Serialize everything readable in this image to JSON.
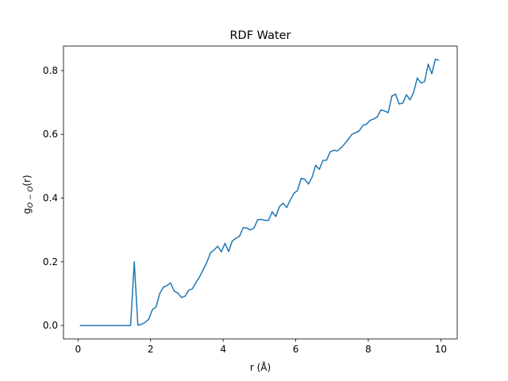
{
  "chart_data": {
    "type": "line",
    "title": "RDF Water",
    "xlabel": "r (Å)",
    "ylabel": {
      "main": "g",
      "subscript": "O − O",
      "suffix": "(r)"
    },
    "xlim": [
      -0.4,
      10.45
    ],
    "ylim": [
      -0.042,
      0.877
    ],
    "xticks": [
      0,
      2,
      4,
      6,
      8,
      10
    ],
    "xtick_labels": [
      "0",
      "2",
      "4",
      "6",
      "8",
      "10"
    ],
    "yticks": [
      0.0,
      0.2,
      0.4,
      0.6,
      0.8
    ],
    "ytick_labels": [
      "0.0",
      "0.2",
      "0.4",
      "0.6",
      "0.8"
    ],
    "grid": false,
    "color": "#1f77b4",
    "series": [
      {
        "x": [
          0.05,
          0.15,
          0.25,
          0.35,
          0.45,
          0.55,
          0.65,
          0.75,
          0.85,
          0.95,
          1.05,
          1.15,
          1.25,
          1.35,
          1.45,
          1.55,
          1.65,
          1.75,
          1.85,
          1.95,
          2.05,
          2.15,
          2.25,
          2.35,
          2.45,
          2.55,
          2.65,
          2.75,
          2.85,
          2.95,
          3.05,
          3.15,
          3.25,
          3.35,
          3.45,
          3.55,
          3.65,
          3.75,
          3.85,
          3.95,
          4.05,
          4.15,
          4.25,
          4.35,
          4.45,
          4.55,
          4.65,
          4.75,
          4.85,
          4.95,
          5.05,
          5.15,
          5.25,
          5.35,
          5.45,
          5.55,
          5.65,
          5.75,
          5.85,
          5.95,
          6.05,
          6.15,
          6.25,
          6.35,
          6.45,
          6.55,
          6.65,
          6.75,
          6.85,
          6.95,
          7.05,
          7.15,
          7.25,
          7.35,
          7.45,
          7.55,
          7.65,
          7.75,
          7.85,
          7.95,
          8.05,
          8.15,
          8.25,
          8.35,
          8.45,
          8.55,
          8.65,
          8.75,
          8.85,
          8.95,
          9.05,
          9.15,
          9.25,
          9.35,
          9.45,
          9.55,
          9.65,
          9.75,
          9.85,
          9.95
        ],
        "values": [
          0,
          0,
          0,
          0,
          0,
          0,
          0,
          0,
          0,
          0,
          0,
          0,
          0,
          0,
          0,
          0.2,
          0.001,
          0.004,
          0.01,
          0.02,
          0.05,
          0.058,
          0.1,
          0.12,
          0.125,
          0.134,
          0.108,
          0.102,
          0.088,
          0.092,
          0.111,
          0.115,
          0.135,
          0.153,
          0.175,
          0.198,
          0.228,
          0.237,
          0.249,
          0.231,
          0.258,
          0.232,
          0.265,
          0.274,
          0.28,
          0.307,
          0.306,
          0.3,
          0.306,
          0.332,
          0.333,
          0.33,
          0.33,
          0.357,
          0.342,
          0.373,
          0.384,
          0.37,
          0.394,
          0.415,
          0.424,
          0.462,
          0.459,
          0.444,
          0.465,
          0.503,
          0.49,
          0.518,
          0.519,
          0.545,
          0.55,
          0.548,
          0.558,
          0.57,
          0.585,
          0.6,
          0.605,
          0.611,
          0.628,
          0.632,
          0.644,
          0.648,
          0.655,
          0.677,
          0.673,
          0.668,
          0.72,
          0.726,
          0.695,
          0.698,
          0.724,
          0.708,
          0.732,
          0.777,
          0.761,
          0.765,
          0.82,
          0.79,
          0.836,
          0.832
        ]
      }
    ]
  }
}
